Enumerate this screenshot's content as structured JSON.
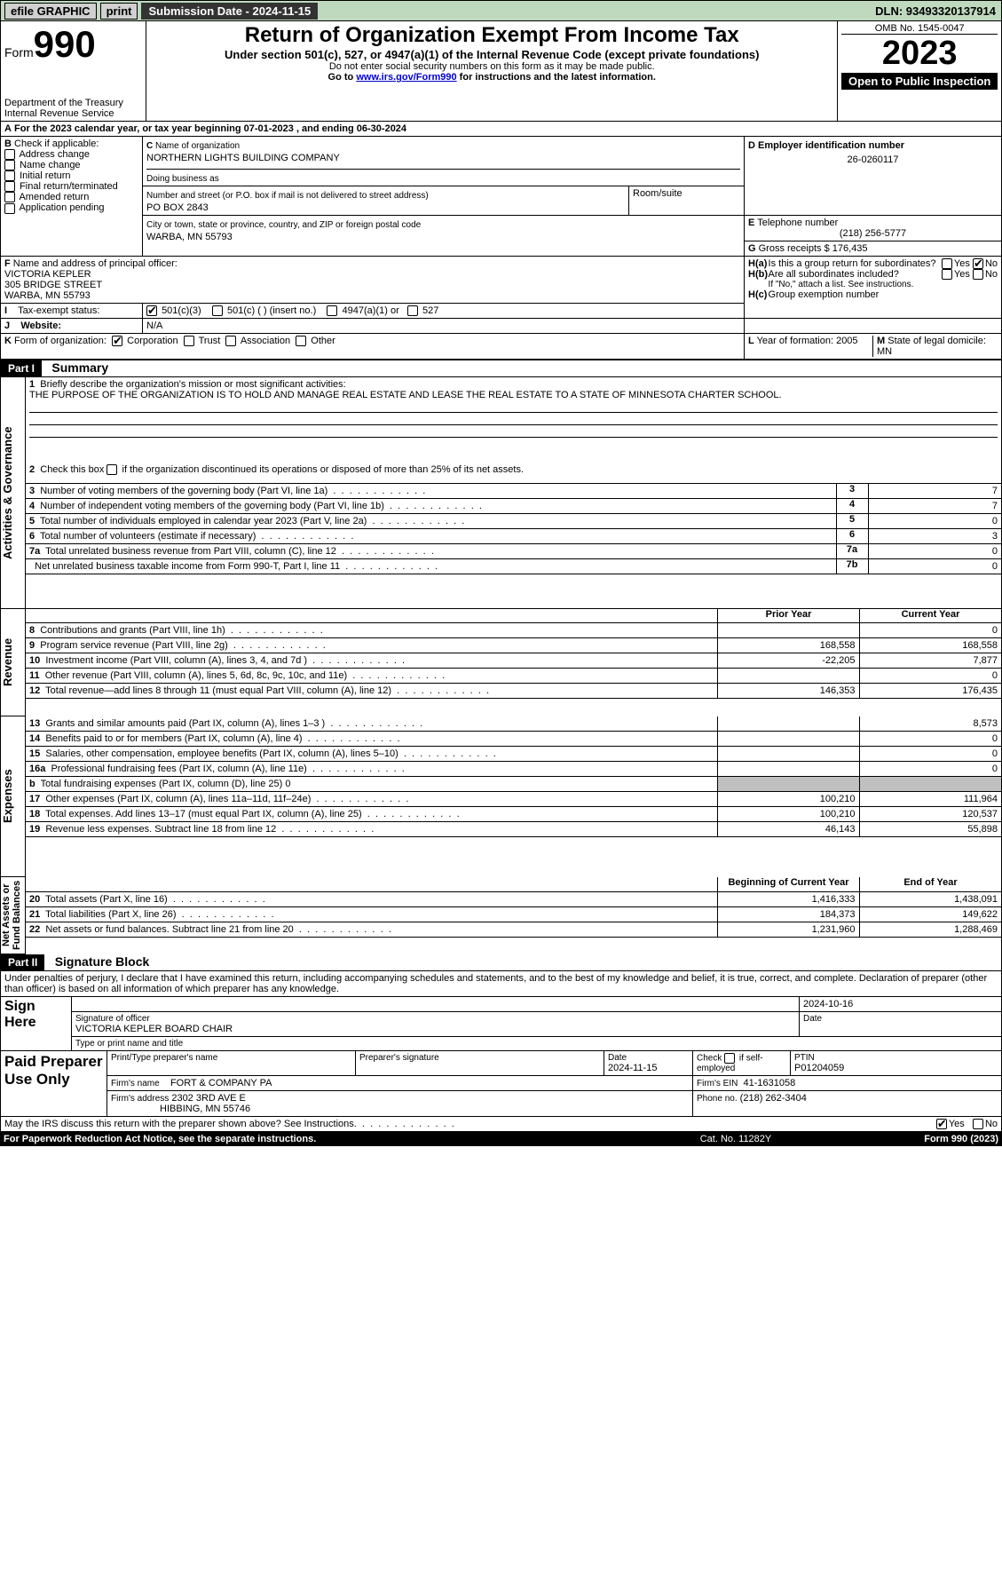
{
  "topbar": {
    "efile": "efile GRAPHIC",
    "print": "print",
    "submission": "Submission Date - 2024-11-15",
    "dln": "DLN: 93493320137914"
  },
  "header": {
    "form_word": "Form",
    "form_no": "990",
    "dept1": "Department of the Treasury",
    "dept2": "Internal Revenue Service",
    "title": "Return of Organization Exempt From Income Tax",
    "sub1": "Under section 501(c), 527, or 4947(a)(1) of the Internal Revenue Code (except private foundations)",
    "sub2": "Do not enter social security numbers on this form as it may be made public.",
    "sub3": "Go to ",
    "sub3_link": "www.irs.gov/Form990",
    "sub3_after": " for instructions and the latest information.",
    "omb": "OMB No. 1545-0047",
    "year": "2023",
    "open": "Open to Public Inspection"
  },
  "secA": {
    "line": "For the 2023 calendar year, or tax year beginning 07-01-2023    , and ending 06-30-2024",
    "b_label": "Check if applicable:",
    "b_items": [
      "Address change",
      "Name change",
      "Initial return",
      "Final return/terminated",
      "Amended return",
      "Application pending"
    ],
    "c_label": "Name of organization",
    "c_name": "NORTHERN LIGHTS BUILDING COMPANY",
    "dba": "Doing business as",
    "street_label": "Number and street (or P.O. box if mail is not delivered to street address)",
    "street": "PO BOX 2843",
    "room": "Room/suite",
    "city_label": "City or town, state or province, country, and ZIP or foreign postal code",
    "city": "WARBA, MN  55793",
    "d_label": "Employer identification number",
    "d_ein": "26-0260117",
    "e_label": "Telephone number",
    "e_phone": "(218) 256-5777",
    "g_label": "Gross receipts $",
    "g_val": "176,435",
    "f_label": "Name and address of principal officer:",
    "f_name": "VICTORIA KEPLER",
    "f_addr1": "305 BRIDGE STREET",
    "f_addr2": "WARBA, MN  55793",
    "ha": "Is this a group return for subordinates?",
    "hb": "Are all subordinates included?",
    "hb_note": "If \"No,\" attach a list. See instructions.",
    "hc": "Group exemption number",
    "yes": "Yes",
    "no": "No",
    "i_label": "Tax-exempt status:",
    "i_501c3": "501(c)(3)",
    "i_501c": "501(c) (  ) (insert no.)",
    "i_4947": "4947(a)(1) or",
    "i_527": "527",
    "j_label": "Website:",
    "j_val": "N/A",
    "k_label": "Form of organization:",
    "k_corp": "Corporation",
    "k_trust": "Trust",
    "k_assoc": "Association",
    "k_other": "Other",
    "l_label": "Year of formation: 2005",
    "m_label": "State of legal domicile: MN"
  },
  "part1": {
    "title": "Part I",
    "heading": "Summary",
    "side_ag": "Activities & Governance",
    "side_rev": "Revenue",
    "side_exp": "Expenses",
    "side_na": "Net Assets or Fund Balances",
    "q1": "Briefly describe the organization's mission or most significant activities:",
    "q1_ans": "THE PURPOSE OF THE ORGANIZATION IS TO HOLD AND MANAGE REAL ESTATE AND LEASE THE REAL ESTATE TO A STATE OF MINNESOTA CHARTER SCHOOL.",
    "q2": "Check this box",
    "q2b": "if the organization discontinued its operations or disposed of more than 25% of its net assets.",
    "rows_a": [
      {
        "n": "3",
        "t": "Number of voting members of the governing body (Part VI, line 1a)",
        "c": "3",
        "v": "7"
      },
      {
        "n": "4",
        "t": "Number of independent voting members of the governing body (Part VI, line 1b)",
        "c": "4",
        "v": "7"
      },
      {
        "n": "5",
        "t": "Total number of individuals employed in calendar year 2023 (Part V, line 2a)",
        "c": "5",
        "v": "0"
      },
      {
        "n": "6",
        "t": "Total number of volunteers (estimate if necessary)",
        "c": "6",
        "v": "3"
      },
      {
        "n": "7a",
        "t": "Total unrelated business revenue from Part VIII, column (C), line 12",
        "c": "7a",
        "v": "0"
      },
      {
        "n": "",
        "t": "Net unrelated business taxable income from Form 990-T, Part I, line 11",
        "c": "7b",
        "v": "0"
      }
    ],
    "col_prior": "Prior Year",
    "col_curr": "Current Year",
    "rows_rev": [
      {
        "n": "8",
        "t": "Contributions and grants (Part VIII, line 1h)",
        "p": "",
        "c": "0"
      },
      {
        "n": "9",
        "t": "Program service revenue (Part VIII, line 2g)",
        "p": "168,558",
        "c": "168,558"
      },
      {
        "n": "10",
        "t": "Investment income (Part VIII, column (A), lines 3, 4, and 7d )",
        "p": "-22,205",
        "c": "7,877"
      },
      {
        "n": "11",
        "t": "Other revenue (Part VIII, column (A), lines 5, 6d, 8c, 9c, 10c, and 11e)",
        "p": "",
        "c": "0"
      },
      {
        "n": "12",
        "t": "Total revenue—add lines 8 through 11 (must equal Part VIII, column (A), line 12)",
        "p": "146,353",
        "c": "176,435"
      }
    ],
    "rows_exp": [
      {
        "n": "13",
        "t": "Grants and similar amounts paid (Part IX, column (A), lines 1–3 )",
        "p": "",
        "c": "8,573"
      },
      {
        "n": "14",
        "t": "Benefits paid to or for members (Part IX, column (A), line 4)",
        "p": "",
        "c": "0"
      },
      {
        "n": "15",
        "t": "Salaries, other compensation, employee benefits (Part IX, column (A), lines 5–10)",
        "p": "",
        "c": "0"
      },
      {
        "n": "16a",
        "t": "Professional fundraising fees (Part IX, column (A), line 11e)",
        "p": "",
        "c": "0"
      },
      {
        "n": "b",
        "t": "Total fundraising expenses (Part IX, column (D), line 25) 0",
        "p": "grey",
        "c": "grey"
      },
      {
        "n": "17",
        "t": "Other expenses (Part IX, column (A), lines 11a–11d, 11f–24e)",
        "p": "100,210",
        "c": "111,964"
      },
      {
        "n": "18",
        "t": "Total expenses. Add lines 13–17 (must equal Part IX, column (A), line 25)",
        "p": "100,210",
        "c": "120,537"
      },
      {
        "n": "19",
        "t": "Revenue less expenses. Subtract line 18 from line 12",
        "p": "46,143",
        "c": "55,898"
      }
    ],
    "col_boy": "Beginning of Current Year",
    "col_eoy": "End of Year",
    "rows_na": [
      {
        "n": "20",
        "t": "Total assets (Part X, line 16)",
        "p": "1,416,333",
        "c": "1,438,091"
      },
      {
        "n": "21",
        "t": "Total liabilities (Part X, line 26)",
        "p": "184,373",
        "c": "149,622"
      },
      {
        "n": "22",
        "t": "Net assets or fund balances. Subtract line 21 from line 20",
        "p": "1,231,960",
        "c": "1,288,469"
      }
    ]
  },
  "part2": {
    "title": "Part II",
    "heading": "Signature Block",
    "decl": "Under penalties of perjury, I declare that I have examined this return, including accompanying schedules and statements, and to the best of my knowledge and belief, it is true, correct, and complete. Declaration of preparer (other than officer) is based on all information of which preparer has any knowledge.",
    "sign_here": "Sign Here",
    "sig_date": "2024-10-16",
    "sig_officer_label": "Signature of officer",
    "sig_officer": "VICTORIA KEPLER BOARD CHAIR",
    "sig_type_label": "Type or print name and title",
    "date_label": "Date",
    "paid": "Paid Preparer Use Only",
    "prep_name_label": "Print/Type preparer's name",
    "prep_sig_label": "Preparer's signature",
    "prep_date": "2024-11-15",
    "check_self": "Check",
    "check_self2": "if self-employed",
    "ptin_label": "PTIN",
    "ptin": "P01204059",
    "firm_name_label": "Firm's name",
    "firm_name": "FORT & COMPANY PA",
    "firm_ein_label": "Firm's EIN",
    "firm_ein": "41-1631058",
    "firm_addr_label": "Firm's address",
    "firm_addr1": "2302 3RD AVE E",
    "firm_addr2": "HIBBING, MN  55746",
    "firm_phone_label": "Phone no.",
    "firm_phone": "(218) 262-3404",
    "discuss": "May the IRS discuss this return with the preparer shown above? See Instructions."
  },
  "footer": {
    "paperwork": "For Paperwork Reduction Act Notice, see the separate instructions.",
    "cat": "Cat. No. 11282Y",
    "form": "Form 990 (2023)"
  },
  "colors": {
    "topbar_bg": "#bfd9bf",
    "grey": "#c0c0c0"
  }
}
